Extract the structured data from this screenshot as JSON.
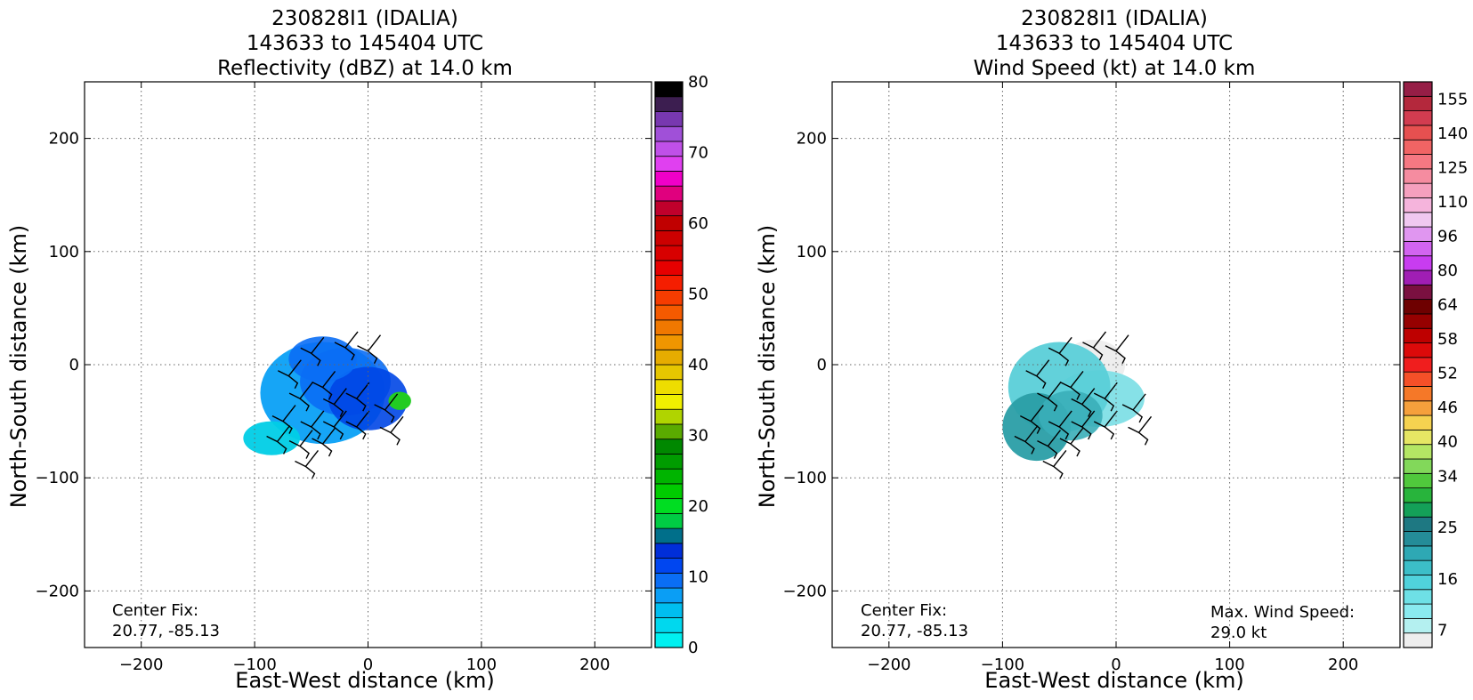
{
  "chart_data": [
    {
      "type": "heatmap",
      "id": "refl",
      "title_lines": [
        "230828I1 (IDALIA)",
        "143633 to 145404 UTC",
        "Reflectivity (dBZ) at 14.0 km"
      ],
      "xlabel": "East-West distance (km)",
      "ylabel": "North-South distance (km)",
      "xlim": [
        -250,
        250
      ],
      "ylim": [
        -250,
        250
      ],
      "xticks": [
        -200,
        -100,
        0,
        100,
        200
      ],
      "yticks": [
        -200,
        -100,
        0,
        100,
        200
      ],
      "xtick_labels": [
        "−200",
        "−100",
        "0",
        "100",
        "200"
      ],
      "ytick_labels": [
        "−200",
        "−100",
        "0",
        "100",
        "200"
      ],
      "grid": true,
      "annotations": [
        {
          "text": "Center Fix:",
          "position": "bottom-left"
        },
        {
          "text": "20.77, -85.13",
          "position": "bottom-left"
        }
      ],
      "echo_blobs": [
        {
          "cx": -40,
          "cy": -25,
          "rx": 55,
          "ry": 45,
          "color": "#0aa0f5",
          "opacity": 0.95
        },
        {
          "cx": -20,
          "cy": -15,
          "rx": 40,
          "ry": 30,
          "color": "#0a6ef5",
          "opacity": 0.9
        },
        {
          "cx": 0,
          "cy": -30,
          "rx": 35,
          "ry": 28,
          "color": "#0046e6",
          "opacity": 0.9
        },
        {
          "cx": -85,
          "cy": -65,
          "rx": 25,
          "ry": 15,
          "color": "#00cde6",
          "opacity": 0.95
        },
        {
          "cx": -40,
          "cy": 5,
          "rx": 30,
          "ry": 20,
          "color": "#0a6ef5",
          "opacity": 0.9
        },
        {
          "cx": 28,
          "cy": -32,
          "rx": 10,
          "ry": 8,
          "color": "#22cc22",
          "opacity": 1
        }
      ],
      "colorbar": {
        "label_values": [
          0,
          10,
          20,
          30,
          40,
          50,
          60,
          70,
          80
        ],
        "label_positions": [
          0,
          10,
          20,
          30,
          40,
          50,
          60,
          70,
          80
        ],
        "range": [
          0,
          80
        ],
        "colors": [
          "#00f0f0",
          "#00d8ee",
          "#00bef0",
          "#0a9ef5",
          "#0a6ef5",
          "#0046f0",
          "#002ed8",
          "#006f8a",
          "#00cc44",
          "#00dd22",
          "#00cc00",
          "#00b400",
          "#009c00",
          "#008800",
          "#5aaa00",
          "#b0d400",
          "#f0f000",
          "#eedd00",
          "#e6c600",
          "#e6ac00",
          "#f09600",
          "#f07800",
          "#f55a00",
          "#f53c00",
          "#f51e00",
          "#e60000",
          "#d80000",
          "#cc0000",
          "#c00000",
          "#c0002c",
          "#e0007e",
          "#f000c8",
          "#e040f0",
          "#c050e8",
          "#a050d8",
          "#7838b0",
          "#3c1e50",
          "#000000"
        ]
      }
    },
    {
      "type": "heatmap",
      "id": "wind",
      "title_lines": [
        "230828I1 (IDALIA)",
        "143633 to 145404 UTC",
        "Wind Speed (kt) at 14.0 km"
      ],
      "xlabel": "East-West distance (km)",
      "ylabel": "North-South distance (km)",
      "xlim": [
        -250,
        250
      ],
      "ylim": [
        -250,
        250
      ],
      "xticks": [
        -200,
        -100,
        0,
        100,
        200
      ],
      "yticks": [
        -200,
        -100,
        0,
        100,
        200
      ],
      "xtick_labels": [
        "−200",
        "−100",
        "0",
        "100",
        "200"
      ],
      "ytick_labels": [
        "−200",
        "−100",
        "0",
        "100",
        "200"
      ],
      "grid": true,
      "annotations": [
        {
          "text": "Center Fix:",
          "position": "bottom-left"
        },
        {
          "text": "20.77, -85.13",
          "position": "bottom-left"
        },
        {
          "text": "Max. Wind Speed:",
          "position": "bottom-right"
        },
        {
          "text": "29.0 kt",
          "position": "bottom-right"
        }
      ],
      "echo_blobs": [
        {
          "cx": -20,
          "cy": 0,
          "rx": 28,
          "ry": 22,
          "color": "#eeeeee",
          "opacity": 1
        },
        {
          "cx": -15,
          "cy": -30,
          "rx": 40,
          "ry": 25,
          "color": "#80dfe6",
          "opacity": 0.95
        },
        {
          "cx": -50,
          "cy": -20,
          "rx": 45,
          "ry": 40,
          "color": "#5acfd8",
          "opacity": 0.95
        },
        {
          "cx": -70,
          "cy": -55,
          "rx": 30,
          "ry": 30,
          "color": "#2a9ea6",
          "opacity": 0.95
        },
        {
          "cx": -40,
          "cy": -45,
          "rx": 28,
          "ry": 22,
          "color": "#3aaeb8",
          "opacity": 0.9
        }
      ],
      "colorbar": {
        "label_values": [
          7,
          16,
          25,
          34,
          40,
          46,
          52,
          58,
          64,
          80,
          96,
          110,
          125,
          140,
          155
        ],
        "label_positions": [
          1,
          4,
          7,
          10,
          12,
          14,
          16,
          18,
          20,
          22,
          24,
          26,
          28,
          30,
          32
        ],
        "range": [
          0,
          33
        ],
        "colors": [
          "#eeeeee",
          "#b4f0f0",
          "#8aeaf0",
          "#6ee0e6",
          "#50d2dc",
          "#3cbec8",
          "#2ea8b4",
          "#248c98",
          "#1e7882",
          "#14a058",
          "#28b43c",
          "#50c83c",
          "#82d85a",
          "#b4e664",
          "#e6e664",
          "#f5d250",
          "#f5a03c",
          "#f57828",
          "#f55028",
          "#f01e1e",
          "#dc0a0a",
          "#be0000",
          "#960000",
          "#6e0000",
          "#7a1040",
          "#a01eb4",
          "#c83cf0",
          "#d264f0",
          "#e096f0",
          "#f0c8f0",
          "#f5b4dc",
          "#f5a0be",
          "#f58ca0",
          "#f57882",
          "#f06464",
          "#e65050",
          "#d23c50",
          "#b4283c",
          "#961e46"
        ]
      }
    }
  ]
}
